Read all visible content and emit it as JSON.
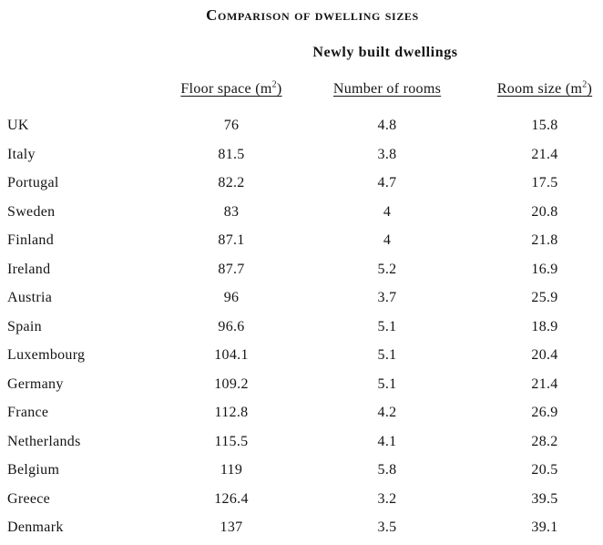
{
  "title": "Comparison of dwelling sizes",
  "subtitle": "Newly built dwellings",
  "table": {
    "columns": [
      {
        "label": "Floor space (m²)",
        "label_pre": "Floor space (m",
        "label_sup": "2",
        "label_post": ")"
      },
      {
        "label": "Number of rooms",
        "label_pre": "Number of rooms",
        "label_sup": "",
        "label_post": ""
      },
      {
        "label": "Room size (m²)",
        "label_pre": "Room size (m",
        "label_sup": "2",
        "label_post": ")"
      }
    ],
    "rows": [
      {
        "country": "UK",
        "floor_space_m2": "76",
        "number_of_rooms": "4.8",
        "room_size_m2": "15.8"
      },
      {
        "country": "Italy",
        "floor_space_m2": "81.5",
        "number_of_rooms": "3.8",
        "room_size_m2": "21.4"
      },
      {
        "country": "Portugal",
        "floor_space_m2": "82.2",
        "number_of_rooms": "4.7",
        "room_size_m2": "17.5"
      },
      {
        "country": "Sweden",
        "floor_space_m2": "83",
        "number_of_rooms": "4",
        "room_size_m2": "20.8"
      },
      {
        "country": "Finland",
        "floor_space_m2": "87.1",
        "number_of_rooms": "4",
        "room_size_m2": "21.8"
      },
      {
        "country": "Ireland",
        "floor_space_m2": "87.7",
        "number_of_rooms": "5.2",
        "room_size_m2": "16.9"
      },
      {
        "country": "Austria",
        "floor_space_m2": "96",
        "number_of_rooms": "3.7",
        "room_size_m2": "25.9"
      },
      {
        "country": "Spain",
        "floor_space_m2": "96.6",
        "number_of_rooms": "5.1",
        "room_size_m2": "18.9"
      },
      {
        "country": "Luxembourg",
        "floor_space_m2": "104.1",
        "number_of_rooms": "5.1",
        "room_size_m2": "20.4"
      },
      {
        "country": "Germany",
        "floor_space_m2": "109.2",
        "number_of_rooms": "5.1",
        "room_size_m2": "21.4"
      },
      {
        "country": "France",
        "floor_space_m2": "112.8",
        "number_of_rooms": "4.2",
        "room_size_m2": "26.9"
      },
      {
        "country": "Netherlands",
        "floor_space_m2": "115.5",
        "number_of_rooms": "4.1",
        "room_size_m2": "28.2"
      },
      {
        "country": "Belgium",
        "floor_space_m2": "119",
        "number_of_rooms": "5.8",
        "room_size_m2": "20.5"
      },
      {
        "country": "Greece",
        "floor_space_m2": "126.4",
        "number_of_rooms": "3.2",
        "room_size_m2": "39.5"
      },
      {
        "country": "Denmark",
        "floor_space_m2": "137",
        "number_of_rooms": "3.5",
        "room_size_m2": "39.1"
      }
    ]
  },
  "chart_data": {
    "type": "table",
    "title": "Comparison of dwelling sizes",
    "subtitle": "Newly built dwellings",
    "categories": [
      "UK",
      "Italy",
      "Portugal",
      "Sweden",
      "Finland",
      "Ireland",
      "Austria",
      "Spain",
      "Luxembourg",
      "Germany",
      "France",
      "Netherlands",
      "Belgium",
      "Greece",
      "Denmark"
    ],
    "series": [
      {
        "name": "Floor space (m²)",
        "values": [
          76,
          81.5,
          82.2,
          83,
          87.1,
          87.7,
          96,
          96.6,
          104.1,
          109.2,
          112.8,
          115.5,
          119,
          126.4,
          137
        ]
      },
      {
        "name": "Number of rooms",
        "values": [
          4.8,
          3.8,
          4.7,
          4,
          4,
          5.2,
          3.7,
          5.1,
          5.1,
          5.1,
          4.2,
          4.1,
          5.8,
          3.2,
          3.5
        ]
      },
      {
        "name": "Room size (m²)",
        "values": [
          15.8,
          21.4,
          17.5,
          20.8,
          21.8,
          16.9,
          25.9,
          18.9,
          20.4,
          21.4,
          26.9,
          28.2,
          20.5,
          39.5,
          39.1
        ]
      }
    ],
    "text_color": "#141414",
    "background_color": "#ffffff"
  }
}
